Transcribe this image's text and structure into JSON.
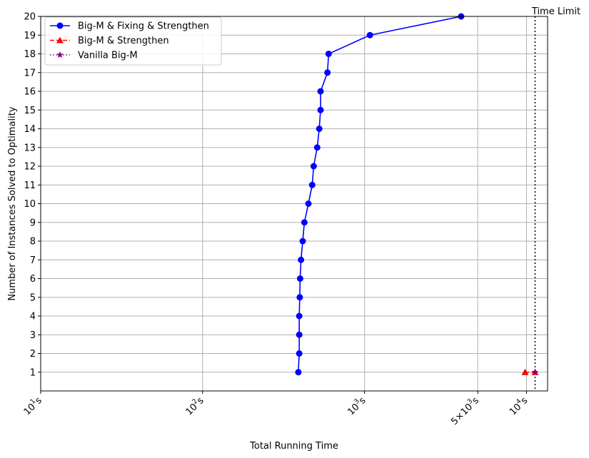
{
  "chart_data": {
    "type": "line",
    "x_scale": "log",
    "xlabel": "Total Running Time",
    "ylabel": "Number of Instances Solved to Optimality",
    "xlim": [
      10,
      13500
    ],
    "ylim": [
      0,
      20
    ],
    "grid": true,
    "legend_position": "top-left",
    "x_ticks": [
      {
        "value": 10,
        "base": "10",
        "exp": "1",
        "suffix": "s"
      },
      {
        "value": 100,
        "base": "10",
        "exp": "2",
        "suffix": "s"
      },
      {
        "value": 1000,
        "base": "10",
        "exp": "3",
        "suffix": "s"
      },
      {
        "value": 5000,
        "prefix": "5×",
        "base": "10",
        "exp": "3",
        "suffix": "s"
      },
      {
        "value": 10000,
        "base": "10",
        "exp": "4",
        "suffix": "s"
      }
    ],
    "y_ticks": [
      1,
      2,
      3,
      4,
      5,
      6,
      7,
      8,
      9,
      10,
      11,
      12,
      13,
      14,
      15,
      16,
      17,
      18,
      19,
      20
    ],
    "series": [
      {
        "name": "Big-M & Fixing & Strengthen",
        "color": "#0000ff",
        "marker": "circle",
        "line_style": "solid",
        "points": [
          [
            390,
            1
          ],
          [
            395,
            2
          ],
          [
            395,
            3
          ],
          [
            395,
            4
          ],
          [
            398,
            5
          ],
          [
            400,
            6
          ],
          [
            405,
            7
          ],
          [
            415,
            8
          ],
          [
            425,
            9
          ],
          [
            450,
            10
          ],
          [
            475,
            11
          ],
          [
            485,
            12
          ],
          [
            510,
            13
          ],
          [
            525,
            14
          ],
          [
            535,
            15
          ],
          [
            535,
            16
          ],
          [
            590,
            17
          ],
          [
            600,
            18
          ],
          [
            1080,
            19
          ],
          [
            3950,
            20
          ]
        ]
      },
      {
        "name": "Big-M & Strengthen",
        "color": "#ff0000",
        "marker": "triangle",
        "line_style": "dashed",
        "points": [
          [
            9800,
            1
          ],
          [
            11300,
            1
          ]
        ]
      },
      {
        "name": "Vanilla Big-M",
        "color": "#800080",
        "marker": "star",
        "line_style": "dotted",
        "points": [
          [
            11300,
            1
          ]
        ]
      }
    ],
    "annotations": [
      {
        "text": "Time Limit",
        "x": 11300,
        "line_style": "dotted",
        "color": "#000000"
      }
    ]
  }
}
